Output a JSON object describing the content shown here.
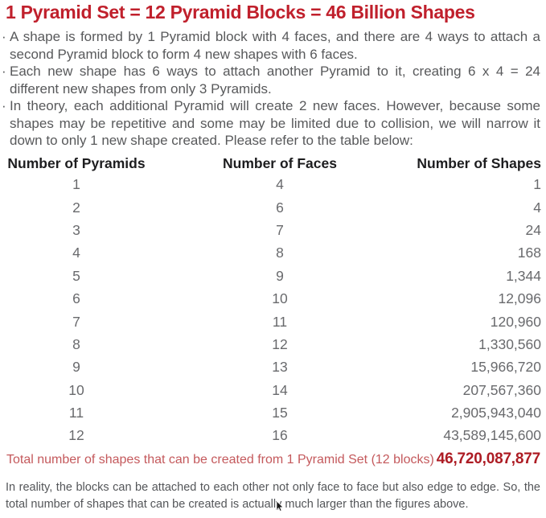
{
  "title": "1 Pyramid Set = 12 Pyramid Blocks = 46 Billion Shapes",
  "bullets": [
    "A shape is formed by 1 Pyramid block with 4 faces, and there are 4 ways to attach a second Pyramid block to form 4 new shapes with 6 faces.",
    "Each new shape has 6 ways to attach another Pyramid to it, creating 6 x 4 = 24 different new shapes from only 3 Pyramids.",
    "In theory, each additional Pyramid will create 2 new faces. However, because some shapes may be repetitive and some may be limited due to collision, we will narrow it down to only 1 new shape created. Please refer to the table below:"
  ],
  "bullet_marker": "·",
  "table": {
    "headers": [
      "Number of Pyramids",
      "Number of Faces",
      "Number of Shapes"
    ],
    "rows": [
      [
        "1",
        "4",
        "1"
      ],
      [
        "2",
        "6",
        "4"
      ],
      [
        "3",
        "7",
        "24"
      ],
      [
        "4",
        "8",
        "168"
      ],
      [
        "5",
        "9",
        "1,344"
      ],
      [
        "6",
        "10",
        "12,096"
      ],
      [
        "7",
        "11",
        "120,960"
      ],
      [
        "8",
        "12",
        "1,330,560"
      ],
      [
        "9",
        "13",
        "15,966,720"
      ],
      [
        "10",
        "14",
        "207,567,360"
      ],
      [
        "11",
        "15",
        "2,905,943,040"
      ],
      [
        "12",
        "16",
        "43,589,145,600"
      ]
    ]
  },
  "total": {
    "label": "Total number of shapes that can be created from 1 Pyramid Set (12 blocks)",
    "value": "46,720,087,877"
  },
  "footer": "In reality, the blocks can be attached to each other not only face to face but also edge to edge. So, the total number of shapes that can be created is actually much larger than the figures above.",
  "colors": {
    "title_red": "#c0202c",
    "total_label_red": "#c4595c",
    "total_value_red": "#ad1c24",
    "body_gray": "#58595b",
    "table_value_gray": "#696a6d",
    "header_black": "#1d1d1f"
  }
}
